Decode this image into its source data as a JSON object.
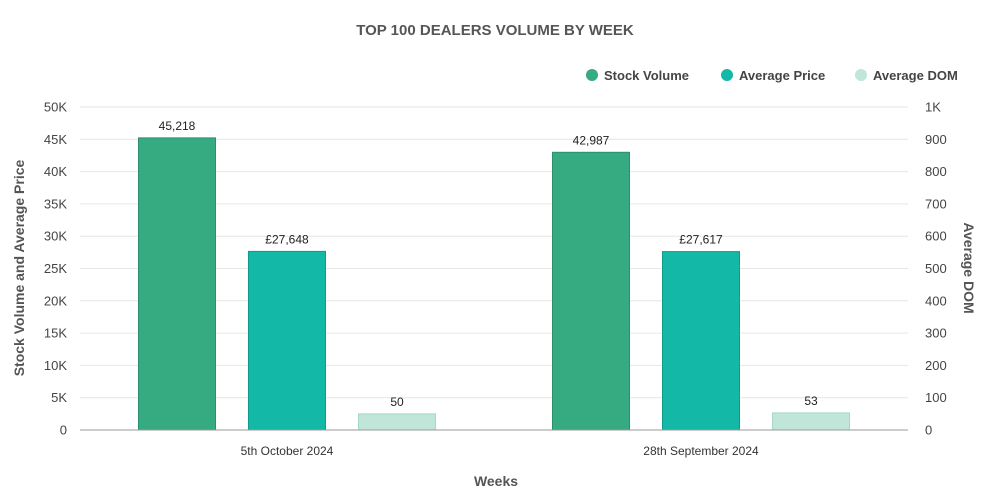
{
  "chart_data": {
    "type": "bar",
    "title": "TOP 100 DEALERS VOLUME BY WEEK",
    "xlabel": "Weeks",
    "ylabel": "Stock Volume and Average Price",
    "y2label": "Average DOM",
    "categories": [
      "5th October 2024",
      "28th September 2024"
    ],
    "ylim": [
      0,
      50000
    ],
    "y2lim": [
      0,
      1000
    ],
    "yticks": [
      "0",
      "5K",
      "10K",
      "15K",
      "20K",
      "25K",
      "30K",
      "35K",
      "40K",
      "45K",
      "50K"
    ],
    "y2ticks": [
      "0",
      "100",
      "200",
      "300",
      "400",
      "500",
      "600",
      "700",
      "800",
      "900",
      "1K"
    ],
    "legend_position": "top-right",
    "grid": true,
    "series": [
      {
        "name": "Stock Volume",
        "axis": "left",
        "color": "#36ab82",
        "edge": "#2a8f6b",
        "values": [
          45218,
          42987
        ],
        "labels": [
          "45,218",
          "42,987"
        ]
      },
      {
        "name": "Average Price",
        "axis": "left",
        "color": "#14b8a6",
        "edge": "#0f9c8c",
        "values": [
          27648,
          27617
        ],
        "labels": [
          "£27,648",
          "£27,617"
        ]
      },
      {
        "name": "Average DOM",
        "axis": "right",
        "color": "#bfe6d9",
        "edge": "#a7d9c7",
        "values": [
          50,
          53
        ],
        "labels": [
          "50",
          "53"
        ]
      }
    ]
  }
}
